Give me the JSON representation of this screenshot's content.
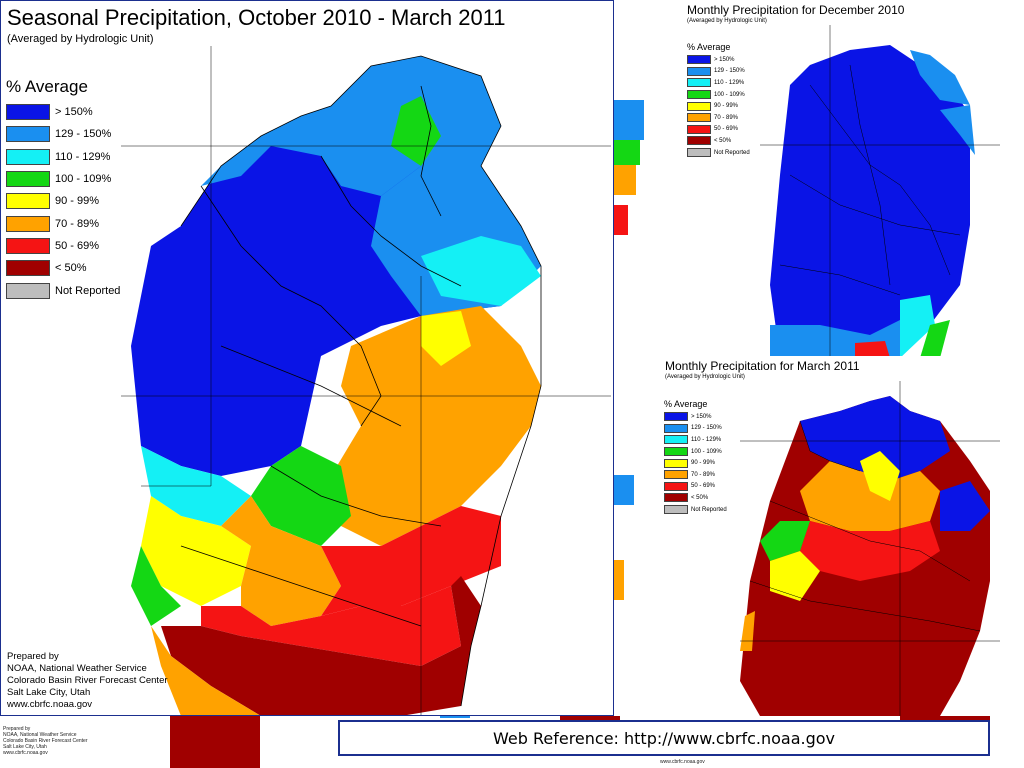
{
  "main_map": {
    "title": "Seasonal Precipitation, October 2010 - March 2011",
    "subtitle": "(Averaged by Hydrologic Unit)"
  },
  "december_map": {
    "title": "Monthly Precipitation for December 2010",
    "subtitle": "(Averaged by Hydrologic Unit)"
  },
  "march_map": {
    "title": "Monthly Precipitation for March 2011",
    "subtitle": "(Averaged by Hydrologic Unit)"
  },
  "legend": {
    "title": "% Average",
    "classes": [
      {
        "label": "> 150%",
        "color": "#0a14e6"
      },
      {
        "label": "129 - 150%",
        "color": "#1a8ff0"
      },
      {
        "label": "110 - 129%",
        "color": "#14f0f5"
      },
      {
        "label": "100 - 109%",
        "color": "#14d714"
      },
      {
        "label": "90 - 99%",
        "color": "#ffff00"
      },
      {
        "label": "70 - 89%",
        "color": "#ffa200"
      },
      {
        "label": "50 - 69%",
        "color": "#f51414"
      },
      {
        "label": "< 50%",
        "color": "#a00000"
      },
      {
        "label": "Not Reported",
        "color": "#bdbdbd"
      }
    ]
  },
  "prepared_by": {
    "lines": [
      "Prepared by",
      "NOAA, National Weather Service",
      "Colorado Basin River Forecast Center",
      "Salt Lake City, Utah",
      "www.cbrfc.noaa.gov"
    ]
  },
  "small_url": "www.cbrfc.noaa.gov",
  "web_reference": "Web Reference: http://www.cbrfc.noaa.gov"
}
